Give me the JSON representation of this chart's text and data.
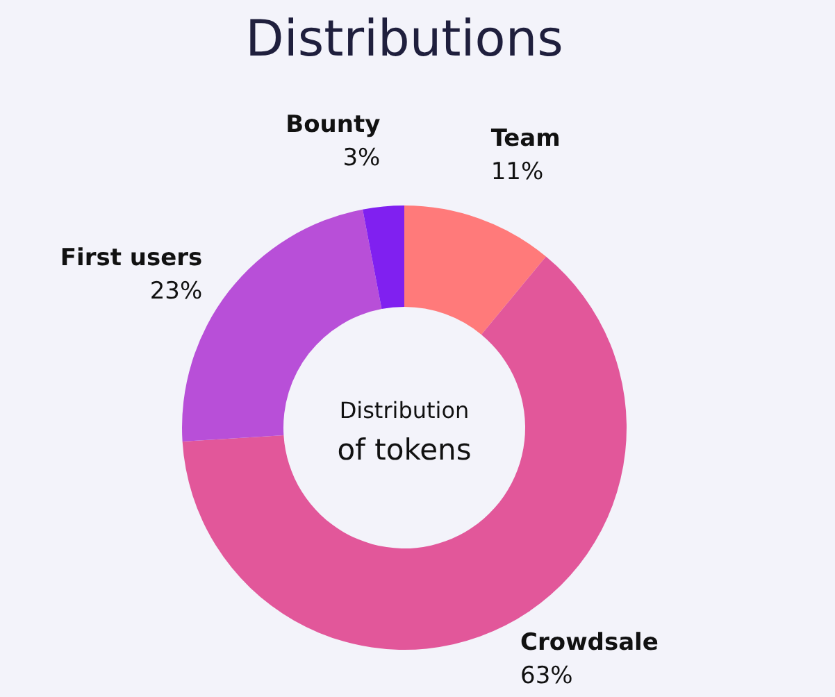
{
  "chart_data": {
    "type": "donut",
    "title": "Distributions",
    "categories": [
      "Team",
      "Crowdsale",
      "First users",
      "Bounty"
    ],
    "values": [
      11,
      63,
      23,
      3
    ],
    "colors": [
      "#ff7a7a",
      "#e2579a",
      "#b84fd8",
      "#8020f0"
    ],
    "value_labels": [
      "11%",
      "63%",
      "23%",
      "3%"
    ],
    "annotations": [
      "Distribution",
      "of tokens"
    ]
  }
}
